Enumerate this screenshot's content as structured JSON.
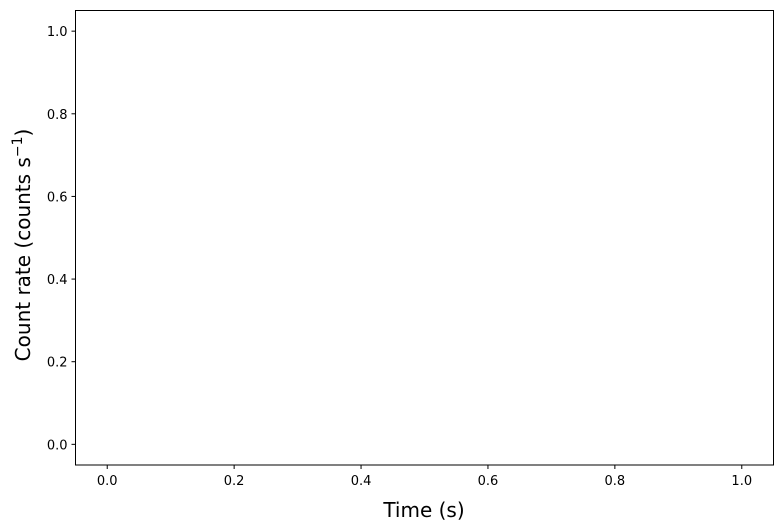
{
  "chart_data": {
    "type": "line",
    "title": "",
    "xlabel": "Time (s)",
    "ylabel_main": "Count rate (counts s",
    "ylabel_sup": "−1",
    "ylabel_close": ")",
    "xlim": [
      -0.05,
      1.05
    ],
    "ylim": [
      -0.05,
      1.05
    ],
    "xticks": [
      "0.0",
      "0.2",
      "0.4",
      "0.6",
      "0.8",
      "1.0"
    ],
    "yticks": [
      "0.0",
      "0.2",
      "0.4",
      "0.6",
      "0.8",
      "1.0"
    ],
    "grid": false,
    "series": []
  }
}
